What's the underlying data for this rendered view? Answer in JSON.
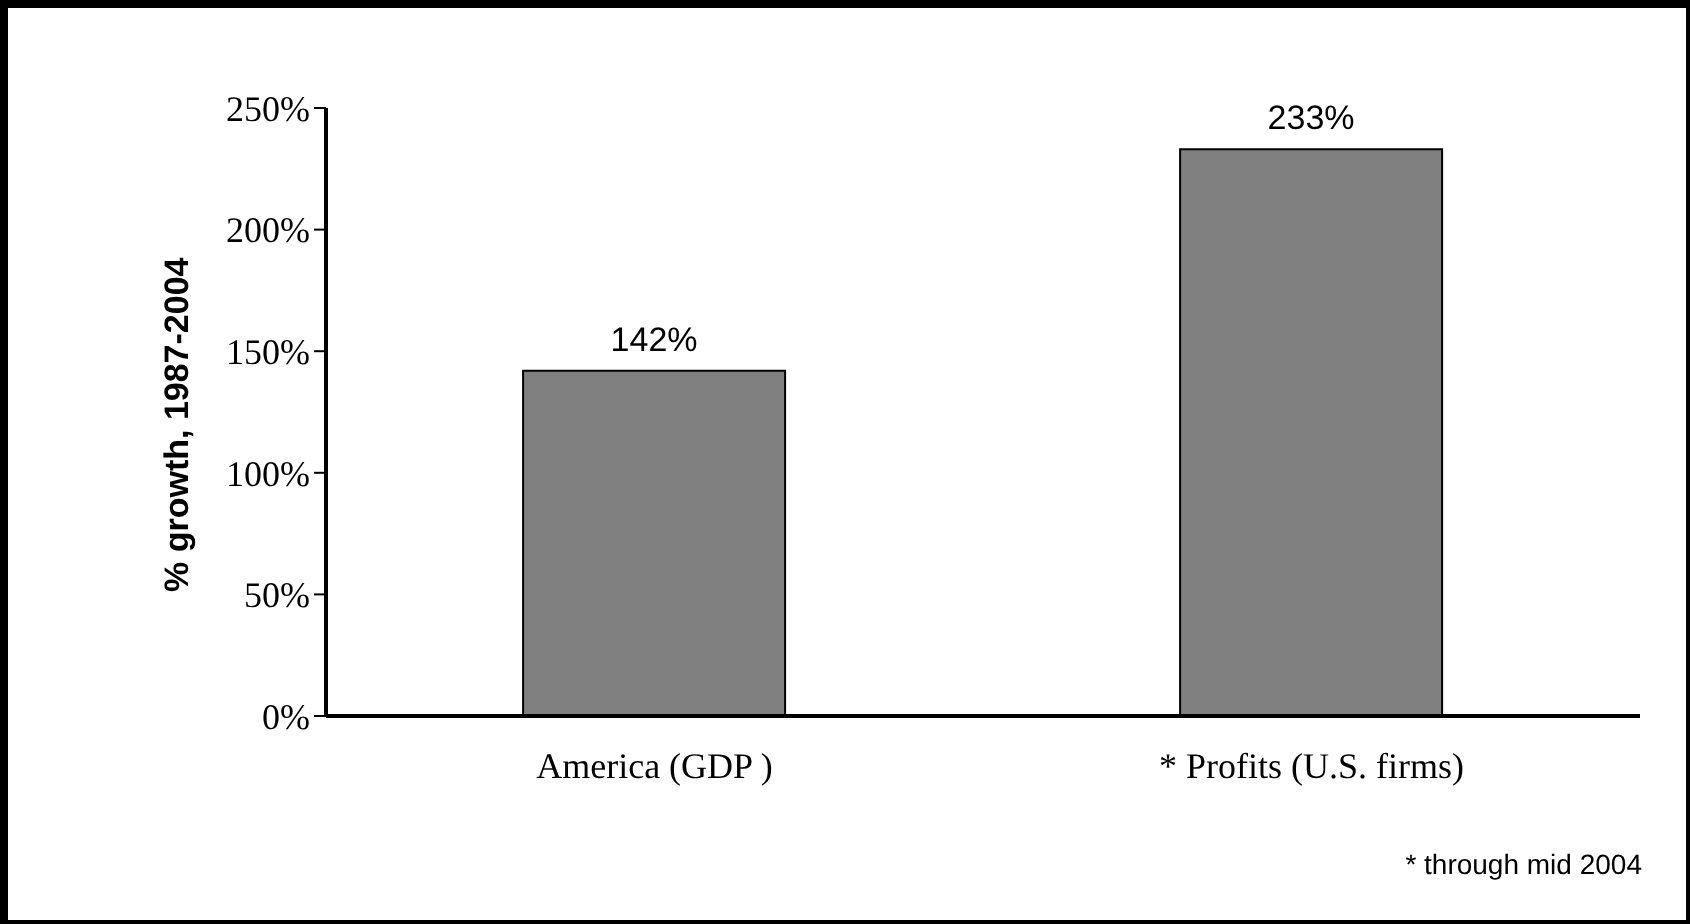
{
  "chart_data": {
    "type": "bar",
    "ylabel": "% growth, 1987-2004",
    "categories": [
      "America (GDP )",
      "* Profits (U.S. firms)"
    ],
    "values": [
      142,
      233
    ],
    "value_labels": [
      "142%",
      "233%"
    ],
    "color": "#808080",
    "ylim": [
      0,
      250
    ],
    "yticks": [
      {
        "value": 0,
        "label": "0%"
      },
      {
        "value": 50,
        "label": "50%"
      },
      {
        "value": 100,
        "label": "100%"
      },
      {
        "value": 150,
        "label": "150%"
      },
      {
        "value": 200,
        "label": "200%"
      },
      {
        "value": 250,
        "label": "250%"
      }
    ],
    "grid": false,
    "legend": false,
    "annotations": [
      "* through mid 2004"
    ]
  }
}
